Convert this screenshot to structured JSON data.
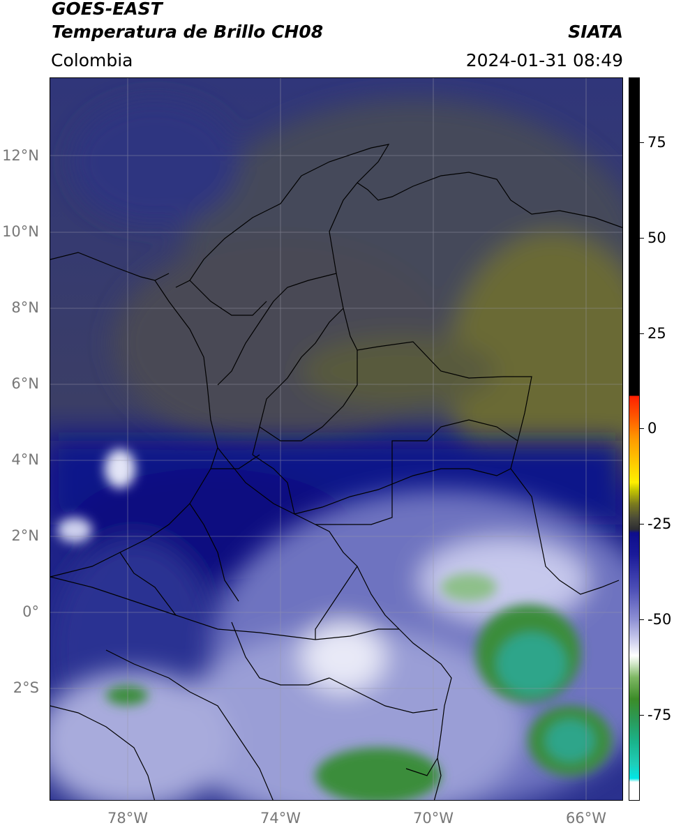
{
  "header": {
    "satellite": "GOES-EAST",
    "product": "Temperatura de Brillo CH08",
    "region": "Colombia",
    "org": "SIATA",
    "datetime": "2024-01-31 08:49"
  },
  "map": {
    "lat_labels": [
      "12°N",
      "10°N",
      "8°N",
      "6°N",
      "4°N",
      "2°N",
      "0°",
      "2°S"
    ],
    "lon_labels": [
      "78°W",
      "74°W",
      "70°W",
      "66°W"
    ],
    "colors": {
      "deep_blue": "#0b0f7a",
      "navy": "#262e86",
      "olive": "#5f6236",
      "gray_olive": "#4b4d52",
      "periwinkle": "#8a8fd0",
      "white_cloud": "#f2f3fb",
      "green_cloud": "#3a8d3a",
      "teal_cloud": "#2fa58a",
      "border": "#000000"
    }
  },
  "colorbar": {
    "labels": [
      "75",
      "50",
      "25",
      "0",
      "-25",
      "-50",
      "-75"
    ],
    "colors": {
      "black": "#000000",
      "red": "#ff1e00",
      "orange": "#ff8c00",
      "yellow": "#ffef00",
      "olive": "#7a7a1e",
      "dark": "#2e2e32",
      "navy": "#0d0d8c",
      "lavender": "#b3b5e6",
      "white": "#ffffff",
      "green": "#3c8c28",
      "teal": "#1ab48c",
      "cyan": "#00e6e6"
    }
  }
}
